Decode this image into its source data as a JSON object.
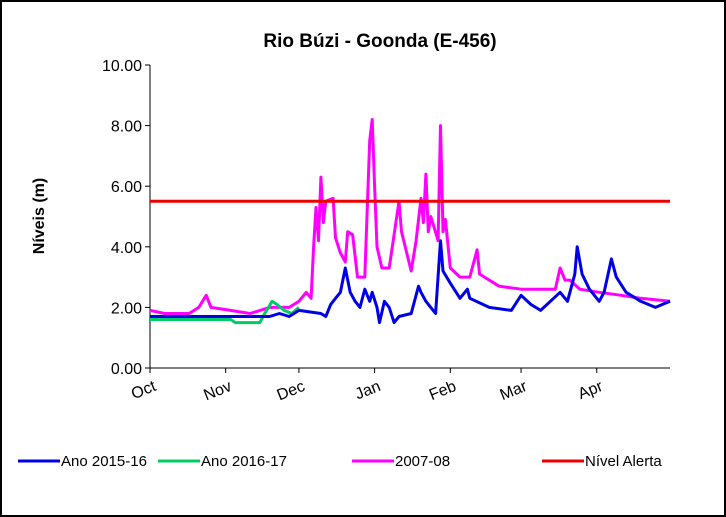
{
  "chart_data": {
    "type": "line",
    "title": "Rio Búzi - Goonda (E-456)",
    "y_label": "Níveis (m)",
    "xlim": [
      0,
      213
    ],
    "xticks": [
      {
        "value": 0,
        "label": "Oct"
      },
      {
        "value": 31,
        "label": "Nov"
      },
      {
        "value": 61,
        "label": "Dec"
      },
      {
        "value": 92,
        "label": "Jan"
      },
      {
        "value": 123,
        "label": "Feb"
      },
      {
        "value": 152,
        "label": "Mar"
      },
      {
        "value": 183,
        "label": "Apr"
      }
    ],
    "ylim": [
      0,
      10
    ],
    "yticks": [
      {
        "value": 0,
        "label": "0.00"
      },
      {
        "value": 2,
        "label": "2.00"
      },
      {
        "value": 4,
        "label": "4.00"
      },
      {
        "value": 6,
        "label": "6.00"
      },
      {
        "value": 8,
        "label": "8.00"
      },
      {
        "value": 10,
        "label": "10.00"
      }
    ],
    "grid": false,
    "legend": "bottom",
    "series": [
      {
        "name": "Ano 2015-16",
        "color": "#0000e6",
        "x": [
          0,
          20,
          40,
          49,
          53,
          57,
          61,
          70,
          72,
          74,
          76,
          78,
          80,
          82,
          84,
          86,
          88,
          90,
          91,
          93,
          94,
          96,
          98,
          100,
          102,
          107,
          110,
          111,
          113,
          115,
          117,
          119,
          120,
          123,
          127,
          130,
          131,
          139,
          148,
          152,
          156,
          160,
          164,
          168,
          171,
          174,
          175,
          177,
          180,
          184,
          186,
          189,
          191,
          195,
          201,
          207,
          213
        ],
        "values": [
          1.7,
          1.7,
          1.7,
          1.7,
          1.8,
          1.7,
          1.9,
          1.8,
          1.7,
          2.1,
          2.3,
          2.5,
          3.3,
          2.5,
          2.2,
          2.0,
          2.6,
          2.2,
          2.5,
          2.0,
          1.5,
          2.2,
          2.0,
          1.5,
          1.7,
          1.8,
          2.7,
          2.5,
          2.2,
          2.0,
          1.8,
          4.2,
          3.2,
          2.8,
          2.3,
          2.6,
          2.3,
          2.0,
          1.9,
          2.4,
          2.1,
          1.9,
          2.2,
          2.5,
          2.2,
          3.1,
          4.0,
          3.1,
          2.6,
          2.2,
          2.5,
          3.6,
          3.0,
          2.5,
          2.2,
          2.0,
          2.2
        ]
      },
      {
        "name": "Ano 2016-17",
        "color": "#00cc66",
        "x": [
          0,
          33,
          35,
          45,
          47,
          50,
          52,
          55,
          58,
          61
        ],
        "values": [
          1.6,
          1.6,
          1.5,
          1.5,
          1.8,
          2.2,
          2.1,
          1.9,
          1.8,
          2.0
        ]
      },
      {
        "name": "2007-08",
        "color": "#ff00ff",
        "x": [
          0,
          6,
          16,
          20,
          23,
          25,
          33,
          41,
          49,
          57,
          61,
          64,
          66,
          67,
          68,
          69,
          70,
          71,
          72,
          75,
          76,
          78,
          80,
          81,
          83,
          85,
          88,
          90,
          91,
          92,
          93,
          95,
          98,
          102,
          103,
          107,
          109,
          111,
          112,
          113,
          114,
          115,
          118,
          119,
          120,
          121,
          123,
          127,
          131,
          134,
          135,
          143,
          152,
          166,
          168,
          170,
          172,
          176,
          184,
          193,
          201,
          213
        ],
        "values": [
          1.9,
          1.8,
          1.8,
          2.0,
          2.4,
          2.0,
          1.9,
          1.8,
          2.0,
          2.0,
          2.2,
          2.5,
          2.3,
          4.0,
          5.3,
          4.2,
          6.3,
          4.8,
          5.5,
          5.6,
          4.3,
          3.8,
          3.5,
          4.5,
          4.4,
          3.0,
          3.0,
          7.5,
          8.2,
          6.0,
          4.0,
          3.3,
          3.3,
          5.5,
          4.5,
          3.2,
          4.2,
          5.6,
          4.8,
          6.4,
          4.5,
          5.0,
          4.2,
          8.0,
          4.5,
          4.9,
          3.3,
          3.0,
          3.0,
          3.9,
          3.1,
          2.7,
          2.6,
          2.6,
          3.3,
          2.9,
          2.9,
          2.6,
          2.5,
          2.4,
          2.3,
          2.2
        ]
      },
      {
        "name": "Nível Alerta",
        "color": "#ee0000",
        "x": [
          0,
          213
        ],
        "values": [
          5.5,
          5.5
        ]
      }
    ]
  }
}
